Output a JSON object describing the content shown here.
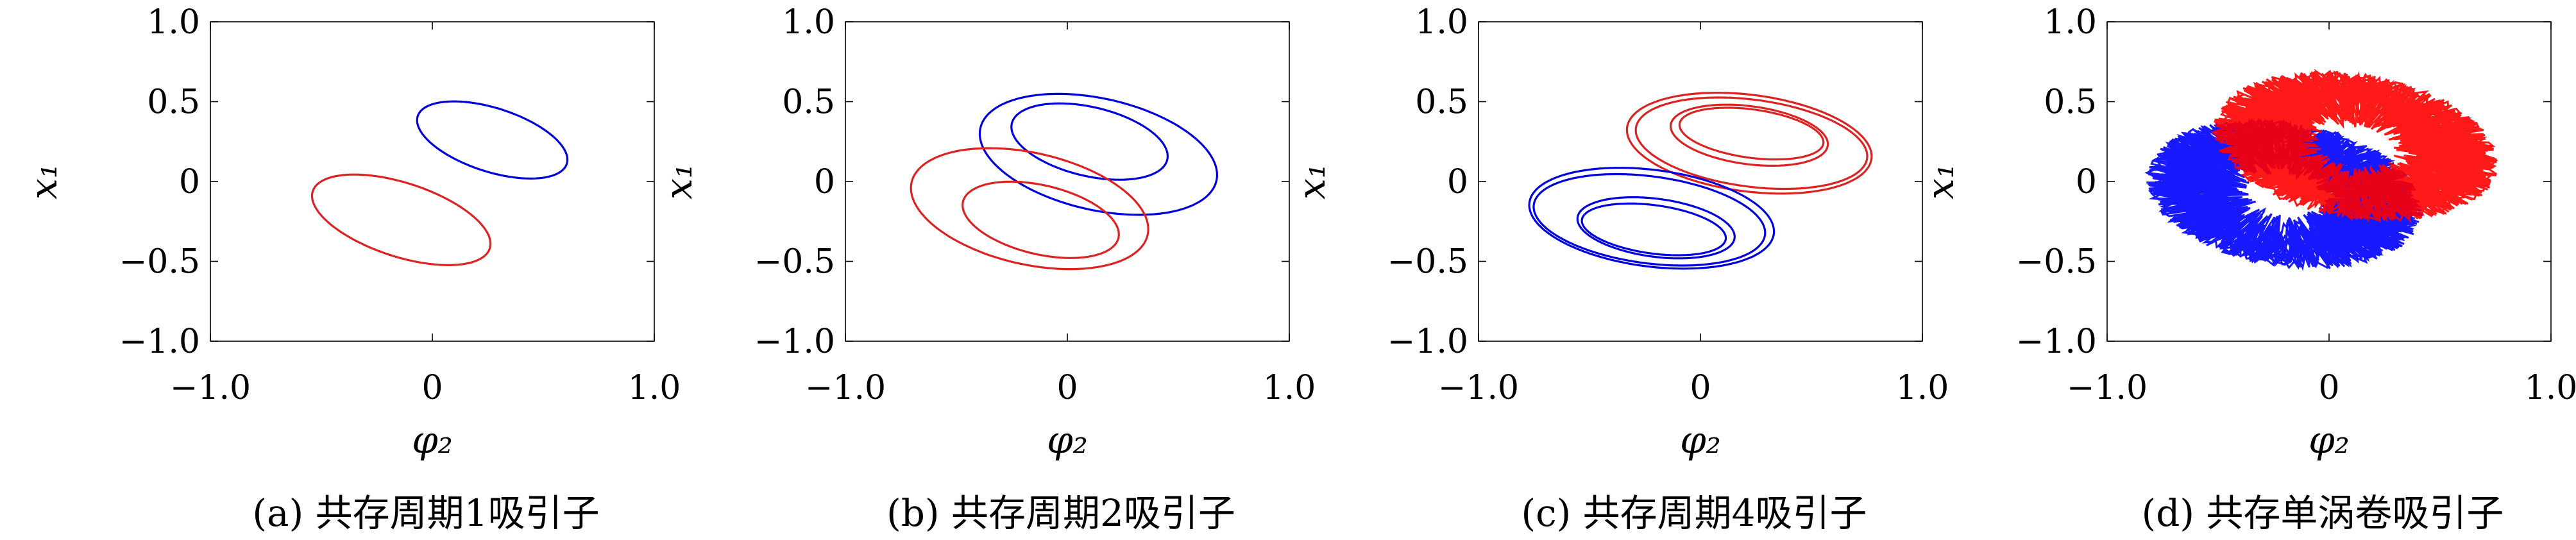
{
  "chart_data": [
    {
      "type": "line",
      "caption": "(a) 共存周期1吸引子",
      "xlabel": "φ₂",
      "ylabel": "x₁",
      "xlim": [
        -1.0,
        1.0
      ],
      "ylim": [
        -1.0,
        1.0
      ],
      "xticks": [
        "−1.0",
        "0",
        "1.0"
      ],
      "yticks": [
        "1.0",
        "0.5",
        "0",
        "−0.5",
        "−1.0"
      ],
      "grid": false,
      "series": [
        {
          "color": "#0000dd",
          "loops": [
            {
              "cx": 0.27,
              "cy": 0.26,
              "a": 0.37,
              "b": 0.19,
              "rot": -28
            }
          ]
        },
        {
          "color": "#dd2222",
          "loops": [
            {
              "cx": -0.14,
              "cy": -0.24,
              "a": 0.44,
              "b": 0.22,
              "rot": -28
            }
          ]
        }
      ]
    },
    {
      "type": "line",
      "caption": "(b) 共存周期2吸引子",
      "xlabel": "φ₂",
      "ylabel": "x₁",
      "xlim": [
        -1.0,
        1.0
      ],
      "ylim": [
        -1.0,
        1.0
      ],
      "xticks": [
        "−1.0",
        "0",
        "1.0"
      ],
      "yticks": [
        "1.0",
        "0.5",
        "0",
        "−0.5",
        "−1.0"
      ],
      "grid": false,
      "series": [
        {
          "color": "#0000dd",
          "loops": [
            {
              "cx": 0.14,
              "cy": 0.17,
              "a": 0.56,
              "b": 0.34,
              "rot": -22
            },
            {
              "cx": 0.1,
              "cy": 0.25,
              "a": 0.37,
              "b": 0.21,
              "rot": -22
            }
          ]
        },
        {
          "color": "#dd2222",
          "loops": [
            {
              "cx": -0.17,
              "cy": -0.17,
              "a": 0.56,
              "b": 0.34,
              "rot": -22
            },
            {
              "cx": -0.12,
              "cy": -0.24,
              "a": 0.37,
              "b": 0.21,
              "rot": -22
            }
          ]
        }
      ]
    },
    {
      "type": "line",
      "caption": "(c) 共存周期4吸引子",
      "xlabel": "φ₂",
      "ylabel": "x₁",
      "xlim": [
        -1.0,
        1.0
      ],
      "ylim": [
        -1.0,
        1.0
      ],
      "xticks": [
        "−1.0",
        "0",
        "1.0"
      ],
      "yticks": [
        "1.0",
        "0.5",
        "0",
        "−0.5",
        "−1.0"
      ],
      "grid": false,
      "series": [
        {
          "color": "#dd2222",
          "loops": [
            {
              "cx": 0.22,
              "cy": 0.24,
              "a": 0.56,
              "b": 0.3,
              "rot": -12
            },
            {
              "cx": 0.23,
              "cy": 0.24,
              "a": 0.53,
              "b": 0.27,
              "rot": -12
            },
            {
              "cx": 0.22,
              "cy": 0.29,
              "a": 0.36,
              "b": 0.18,
              "rot": -12
            },
            {
              "cx": 0.23,
              "cy": 0.3,
              "a": 0.33,
              "b": 0.15,
              "rot": -12
            }
          ]
        },
        {
          "color": "#0000dd",
          "loops": [
            {
              "cx": -0.22,
              "cy": -0.23,
              "a": 0.56,
              "b": 0.3,
              "rot": -12
            },
            {
              "cx": -0.23,
              "cy": -0.24,
              "a": 0.53,
              "b": 0.27,
              "rot": -12
            },
            {
              "cx": -0.2,
              "cy": -0.29,
              "a": 0.36,
              "b": 0.18,
              "rot": -12
            },
            {
              "cx": -0.21,
              "cy": -0.3,
              "a": 0.33,
              "b": 0.15,
              "rot": -12
            }
          ]
        }
      ]
    },
    {
      "type": "line",
      "caption": "(d) 共存单涡卷吸引子",
      "xlabel": "φ₂",
      "ylabel": "x₁",
      "xlim": [
        -1.0,
        1.0
      ],
      "ylim": [
        -1.0,
        1.0
      ],
      "xticks": [
        "−1.0",
        "0",
        "1.0"
      ],
      "yticks": [
        "1.0",
        "0.5",
        "0",
        "−0.5",
        "−1.0"
      ],
      "grid": false,
      "series": [
        {
          "color": "#0000ff",
          "chaotic": true,
          "cx": -0.2,
          "cy": -0.08,
          "ax": 0.64,
          "by": 0.62,
          "rot": -18
        },
        {
          "color": "#ff0000",
          "chaotic": true,
          "cx": 0.12,
          "cy": 0.22,
          "ax": 0.66,
          "by": 0.62,
          "rot": -18
        }
      ]
    }
  ]
}
